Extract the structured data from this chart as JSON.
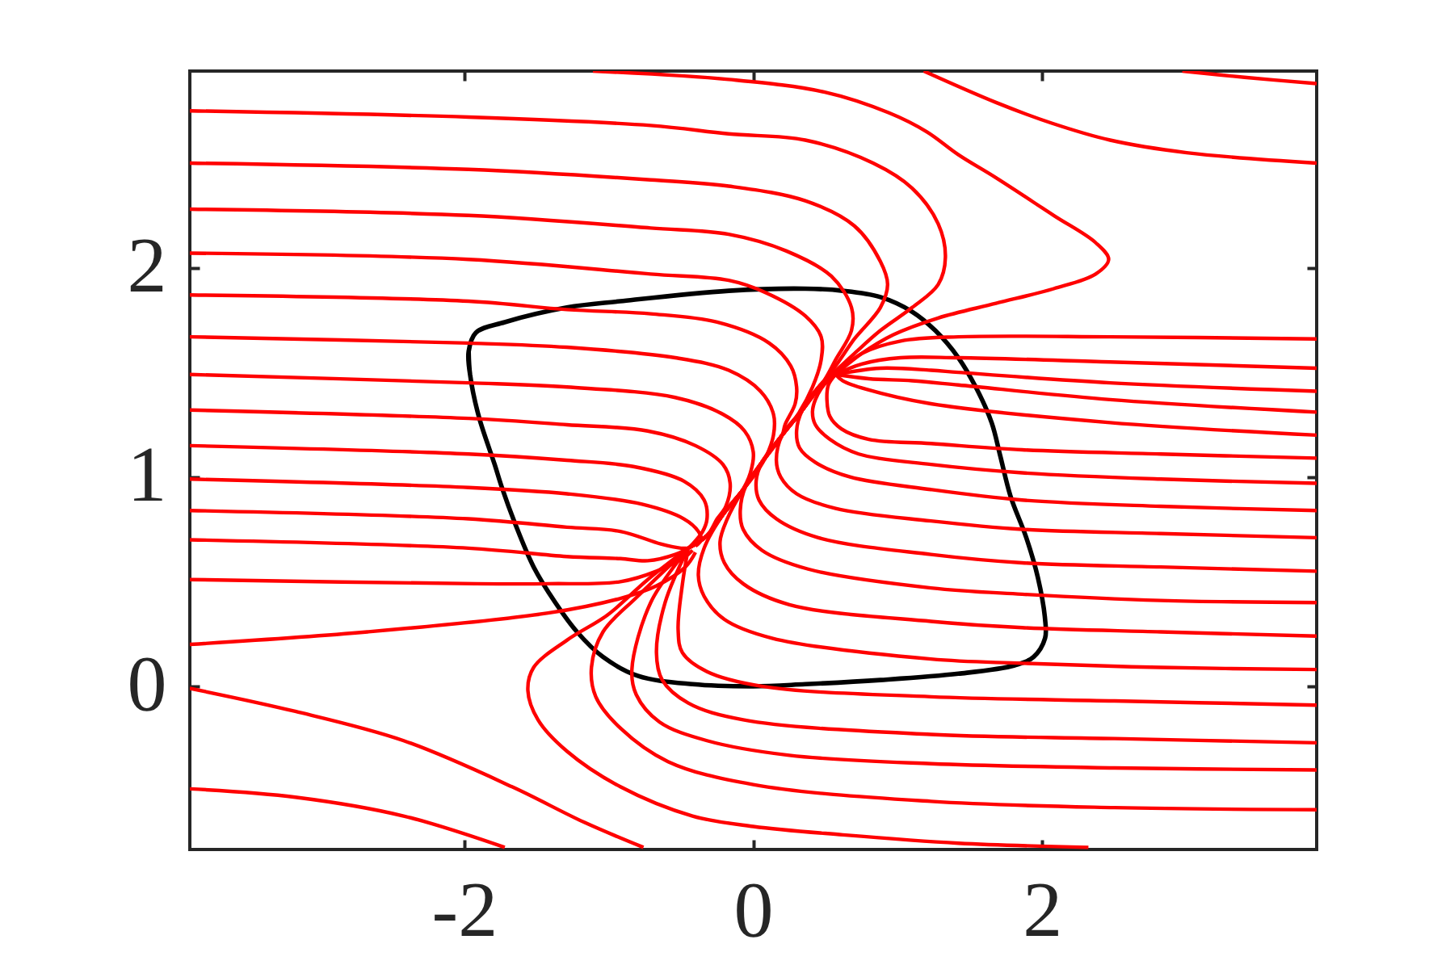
{
  "chart_data": {
    "type": "line",
    "xlim": [
      -3.9,
      3.9
    ],
    "ylim": [
      -0.78,
      2.94
    ],
    "xticks": [
      -2,
      0,
      2
    ],
    "yticks": [
      0,
      1,
      2
    ],
    "marker": "none",
    "line_style": "solid",
    "series": [
      {
        "color": "#000000",
        "x": [
          -1.97,
          -1.96,
          -1.9,
          -1.79,
          -1.74,
          -1.65,
          -1.52,
          -1.37,
          -1.22,
          -1.04,
          -0.8,
          -0.42,
          0,
          0.36,
          0.88,
          1.42,
          1.81,
          1.94,
          2.02,
          2.02,
          1.97,
          1.89,
          1.78,
          1.71,
          1.65,
          1.54,
          1.42,
          1.26,
          1.1,
          0.88,
          0.62,
          0.36,
          -0.17,
          -0.92,
          -1.29,
          -1.72,
          -1.92,
          -1.97,
          -1.96
        ],
        "values": [
          1.6,
          1.49,
          1.29,
          1.06,
          0.95,
          0.78,
          0.57,
          0.4,
          0.26,
          0.14,
          0.05,
          0.01,
          0,
          0.01,
          0.03,
          0.06,
          0.1,
          0.14,
          0.23,
          0.32,
          0.52,
          0.71,
          0.91,
          1.1,
          1.26,
          1.43,
          1.57,
          1.7,
          1.79,
          1.86,
          1.89,
          1.9,
          1.89,
          1.84,
          1.81,
          1.74,
          1.69,
          1.6,
          1.49
        ]
      },
      {
        "color": "#ff0000",
        "x": [
          -3.9,
          -1.97,
          -0.71,
          -0.17,
          0.36,
          0.83,
          1.1,
          1.28,
          1.33,
          1.28,
          1.1,
          0.88,
          0.7,
          0.59,
          0.48,
          0.34,
          0.2,
          0.06,
          -0.07,
          -0.2,
          -0.32,
          -0.45
        ],
        "values": [
          2.75,
          2.72,
          2.68,
          2.64,
          2.61,
          2.5,
          2.38,
          2.21,
          2.05,
          1.92,
          1.81,
          1.7,
          1.59,
          1.52,
          1.45,
          1.32,
          1.2,
          1.07,
          0.94,
          0.83,
          0.72,
          0.66
        ]
      },
      {
        "color": "#ff0000",
        "x": [
          -3.9,
          -1.97,
          -0.71,
          -0.17,
          0.36,
          0.7,
          0.88,
          0.93,
          0.88,
          0.7,
          0.59,
          0.48,
          0.34,
          0.2,
          0.06,
          -0.07,
          -0.2,
          -0.32,
          -0.45
        ],
        "values": [
          2.5,
          2.47,
          2.42,
          2.39,
          2.32,
          2.2,
          2.03,
          1.92,
          1.81,
          1.66,
          1.55,
          1.45,
          1.32,
          1.2,
          1.07,
          0.94,
          0.83,
          0.72,
          0.66
        ]
      },
      {
        "color": "#ff0000",
        "x": [
          -3.9,
          -1.97,
          -0.71,
          -0.17,
          0.23,
          0.54,
          0.68,
          0.68,
          0.57,
          0.49,
          0.34,
          0.2,
          0.06,
          -0.07,
          -0.2,
          -0.32,
          -0.45
        ],
        "values": [
          2.28,
          2.25,
          2.19,
          2.16,
          2.08,
          1.96,
          1.81,
          1.7,
          1.56,
          1.46,
          1.32,
          1.2,
          1.07,
          0.94,
          0.83,
          0.72,
          0.66
        ]
      },
      {
        "color": "#ff0000",
        "x": [
          -3.9,
          -1.97,
          -0.71,
          -0.17,
          0.09,
          0.36,
          0.47,
          0.47,
          0.41,
          0.31,
          0.2,
          0.06,
          -0.07,
          -0.2,
          -0.32,
          -0.45
        ],
        "values": [
          2.07,
          2.04,
          1.97,
          1.94,
          1.88,
          1.77,
          1.67,
          1.56,
          1.43,
          1.3,
          1.2,
          1.07,
          0.94,
          0.83,
          0.72,
          0.66
        ]
      },
      {
        "color": "#ff0000",
        "x": [
          -3.9,
          -1.97,
          -1.29,
          -0.71,
          -0.25,
          0.11,
          0.26,
          0.3,
          0.29,
          0.22,
          0.2,
          0.06,
          -0.07,
          -0.2,
          -0.32,
          -0.45
        ],
        "values": [
          1.87,
          1.84,
          1.8,
          1.78,
          1.74,
          1.64,
          1.53,
          1.43,
          1.35,
          1.25,
          1.2,
          1.07,
          0.94,
          0.83,
          0.72,
          0.66
        ]
      },
      {
        "color": "#ff0000",
        "x": [
          -3.9,
          -1.97,
          -1.29,
          -0.54,
          -0.17,
          0.05,
          0.14,
          0.14,
          0.09,
          0.02,
          -0.07,
          -0.2,
          -0.32,
          -0.45
        ],
        "values": [
          1.67,
          1.64,
          1.62,
          1.57,
          1.51,
          1.41,
          1.3,
          1.2,
          1.1,
          1.02,
          0.94,
          0.83,
          0.72,
          0.66
        ]
      },
      {
        "color": "#ff0000",
        "x": [
          -3.9,
          -1.97,
          -1.29,
          -0.54,
          -0.21,
          -0.06,
          0.0,
          -0.02,
          -0.09,
          -0.2,
          -0.32,
          -0.45
        ],
        "values": [
          1.49,
          1.45,
          1.43,
          1.38,
          1.3,
          1.22,
          1.12,
          1.02,
          0.92,
          0.83,
          0.72,
          0.66
        ]
      },
      {
        "color": "#ff0000",
        "x": [
          -3.9,
          -1.97,
          -1.29,
          -0.73,
          -0.4,
          -0.21,
          -0.16,
          -0.19,
          -0.25,
          -0.32,
          -0.45
        ],
        "values": [
          1.32,
          1.28,
          1.25,
          1.22,
          1.15,
          1.06,
          0.97,
          0.86,
          0.8,
          0.72,
          0.66
        ]
      },
      {
        "color": "#ff0000",
        "x": [
          -3.9,
          -1.97,
          -1.29,
          -0.83,
          -0.48,
          -0.34,
          -0.32,
          -0.35,
          -0.42,
          -0.45
        ],
        "values": [
          1.15,
          1.11,
          1.08,
          1.05,
          0.98,
          0.89,
          0.8,
          0.74,
          0.68,
          0.66
        ]
      },
      {
        "color": "#ff0000",
        "x": [
          -3.9,
          -1.97,
          -1.29,
          -0.77,
          -0.48,
          -0.38,
          -0.36,
          -0.4
        ],
        "values": [
          0.99,
          0.95,
          0.92,
          0.87,
          0.8,
          0.74,
          0.7,
          0.67
        ]
      },
      {
        "color": "#ff0000",
        "x": [
          -3.9,
          -1.97,
          -1.29,
          -0.92,
          -0.64,
          -0.5,
          -0.44
        ],
        "values": [
          0.84,
          0.8,
          0.76,
          0.74,
          0.68,
          0.66,
          0.66
        ]
      },
      {
        "color": "#ff0000",
        "x": [
          -3.9,
          -1.97,
          -1.29,
          -0.92,
          -0.73,
          -0.54,
          -0.45
        ],
        "values": [
          0.7,
          0.66,
          0.62,
          0.61,
          0.6,
          0.63,
          0.66
        ]
      },
      {
        "color": "#ff0000",
        "x": [
          -3.9,
          -1.92,
          -1.42,
          -0.92,
          -0.67,
          -0.47,
          -0.42
        ],
        "values": [
          0.51,
          0.49,
          0.49,
          0.5,
          0.55,
          0.62,
          0.65
        ]
      },
      {
        "color": "#ff0000",
        "x": [
          -3.9,
          -2.67,
          -1.42,
          -0.92,
          -0.67,
          -0.47,
          -0.4
        ],
        "values": [
          0.2,
          0.26,
          0.35,
          0.42,
          0.48,
          0.57,
          0.64
        ]
      },
      {
        "color": "#ff0000",
        "x": [
          -3.9,
          -3.17,
          -2.42,
          -1.67,
          -1.17,
          -0.76
        ],
        "values": [
          -0.01,
          -0.12,
          -0.26,
          -0.48,
          -0.65,
          -0.77
        ]
      },
      {
        "color": "#ff0000",
        "x": [
          -3.9,
          -3.17,
          -2.42,
          -1.72
        ],
        "values": [
          -0.49,
          -0.53,
          -0.62,
          -0.77
        ]
      },
      {
        "color": "#ff0000",
        "x": [
          -1.11,
          -0.17,
          0.49,
          0.94,
          1.2,
          1.42,
          1.68,
          2.08,
          2.37,
          2.46,
          2.37,
          2.08,
          1.68,
          1.28,
          0.97,
          0.75,
          0.62,
          0.57
        ],
        "values": [
          2.94,
          2.9,
          2.84,
          2.74,
          2.65,
          2.54,
          2.43,
          2.25,
          2.12,
          2.04,
          1.97,
          1.9,
          1.83,
          1.76,
          1.68,
          1.59,
          1.52,
          1.49
        ]
      },
      {
        "color": "#ff0000",
        "x": [
          1.18,
          1.68,
          2.07,
          2.47,
          3.0,
          3.9
        ],
        "values": [
          2.94,
          2.79,
          2.69,
          2.61,
          2.55,
          2.5
        ]
      },
      {
        "color": "#ff0000",
        "x": [
          2.97,
          3.4,
          3.9
        ],
        "values": [
          2.94,
          2.91,
          2.88
        ]
      },
      {
        "color": "#ff0000",
        "x": [
          0.57,
          0.75,
          1.02,
          1.42,
          2.47,
          3.9
        ],
        "values": [
          1.49,
          1.59,
          1.65,
          1.67,
          1.67,
          1.66
        ]
      },
      {
        "color": "#ff0000",
        "x": [
          0.57,
          0.75,
          1.02,
          1.42,
          2.47,
          3.9
        ],
        "values": [
          1.49,
          1.54,
          1.57,
          1.57,
          1.55,
          1.52
        ]
      },
      {
        "color": "#ff0000",
        "x": [
          0.57,
          0.88,
          1.23,
          1.42,
          2.47,
          3.9
        ],
        "values": [
          1.49,
          1.52,
          1.51,
          1.5,
          1.45,
          1.41
        ]
      },
      {
        "color": "#ff0000",
        "x": [
          0.57,
          0.8,
          1.1,
          1.42,
          2.47,
          3.9
        ],
        "values": [
          1.49,
          1.47,
          1.46,
          1.44,
          1.37,
          1.31
        ]
      },
      {
        "color": "#ff0000",
        "x": [
          0.57,
          0.62,
          0.78,
          1.23,
          2.47,
          3.9
        ],
        "values": [
          1.49,
          1.46,
          1.42,
          1.35,
          1.26,
          1.2
        ]
      },
      {
        "color": "#ff0000",
        "x": [
          0.57,
          0.52,
          0.51,
          0.53,
          0.61,
          0.8,
          1.23,
          1.86,
          2.82,
          3.9
        ],
        "values": [
          1.49,
          1.44,
          1.37,
          1.29,
          1.23,
          1.18,
          1.16,
          1.13,
          1.11,
          1.09
        ]
      },
      {
        "color": "#ff0000",
        "x": [
          0.57,
          0.49,
          0.43,
          0.41,
          0.43,
          0.53,
          0.73,
          1.23,
          1.86,
          2.82,
          3.9
        ],
        "values": [
          1.49,
          1.44,
          1.37,
          1.31,
          1.25,
          1.18,
          1.11,
          1.06,
          1.02,
          0.99,
          0.97
        ]
      },
      {
        "color": "#ff0000",
        "x": [
          0.57,
          0.48,
          0.34,
          0.3,
          0.32,
          0.43,
          0.67,
          1.23,
          1.86,
          2.82,
          3.9
        ],
        "values": [
          1.49,
          1.45,
          1.32,
          1.22,
          1.14,
          1.07,
          1.0,
          0.94,
          0.89,
          0.86,
          0.84
        ]
      },
      {
        "color": "#ff0000",
        "x": [
          0.57,
          0.48,
          0.34,
          0.2,
          0.16,
          0.19,
          0.3,
          0.57,
          1.23,
          1.86,
          2.82,
          3.9
        ],
        "values": [
          1.49,
          1.45,
          1.32,
          1.2,
          1.08,
          1.0,
          0.92,
          0.85,
          0.79,
          0.75,
          0.73,
          0.71
        ]
      },
      {
        "color": "#ff0000",
        "x": [
          0.57,
          0.48,
          0.34,
          0.2,
          0.06,
          0.02,
          0.04,
          0.16,
          0.45,
          1.23,
          1.86,
          2.82,
          3.9
        ],
        "values": [
          1.49,
          1.45,
          1.32,
          1.2,
          1.07,
          0.98,
          0.89,
          0.8,
          0.71,
          0.63,
          0.59,
          0.57,
          0.55
        ]
      },
      {
        "color": "#ff0000",
        "x": [
          0.57,
          0.48,
          0.34,
          0.2,
          0.06,
          -0.05,
          -0.09,
          -0.07,
          0.06,
          0.38,
          1.23,
          1.86,
          2.82,
          3.9
        ],
        "values": [
          1.49,
          1.45,
          1.32,
          1.2,
          1.07,
          0.96,
          0.84,
          0.75,
          0.65,
          0.56,
          0.47,
          0.44,
          0.41,
          0.4
        ]
      },
      {
        "color": "#ff0000",
        "x": [
          0.57,
          0.48,
          0.34,
          0.2,
          0.06,
          -0.07,
          -0.18,
          -0.23,
          -0.2,
          -0.07,
          0.25,
          1.23,
          1.86,
          2.82,
          3.9
        ],
        "values": [
          1.49,
          1.45,
          1.32,
          1.2,
          1.07,
          0.94,
          0.8,
          0.69,
          0.59,
          0.49,
          0.39,
          0.31,
          0.28,
          0.26,
          0.24
        ]
      },
      {
        "color": "#ff0000",
        "x": [
          0.57,
          0.48,
          0.34,
          0.2,
          0.06,
          -0.07,
          -0.2,
          -0.34,
          -0.38,
          -0.34,
          -0.2,
          0.13,
          1.23,
          1.86,
          2.82,
          3.9
        ],
        "values": [
          1.49,
          1.45,
          1.32,
          1.2,
          1.07,
          0.94,
          0.83,
          0.66,
          0.53,
          0.43,
          0.32,
          0.23,
          0.13,
          0.11,
          0.09,
          0.08
        ]
      },
      {
        "color": "#ff0000",
        "x": [
          -0.45,
          -0.49,
          -0.52,
          -0.49,
          -0.32,
          0.06,
          1.23,
          2.5,
          3.9
        ],
        "values": [
          0.66,
          0.49,
          0.27,
          0.16,
          0.07,
          0.0,
          -0.05,
          -0.07,
          -0.09
        ]
      },
      {
        "color": "#ff0000",
        "x": [
          -0.45,
          -0.61,
          -0.67,
          -0.63,
          -0.45,
          -0.07,
          1.23,
          2.5,
          3.9
        ],
        "values": [
          0.66,
          0.4,
          0.16,
          0.03,
          -0.08,
          -0.16,
          -0.23,
          -0.25,
          -0.27
        ]
      },
      {
        "color": "#ff0000",
        "x": [
          -0.45,
          -0.71,
          -0.84,
          -0.81,
          -0.65,
          -0.32,
          0.25,
          1.23,
          2.5,
          3.9
        ],
        "values": [
          0.66,
          0.4,
          0.08,
          -0.04,
          -0.17,
          -0.26,
          -0.33,
          -0.37,
          -0.39,
          -0.4
        ]
      },
      {
        "color": "#ff0000",
        "x": [
          -0.45,
          -0.8,
          -1.04,
          -1.12,
          -1.09,
          -0.92,
          -0.59,
          0.0,
          1.23,
          2.5,
          3.9
        ],
        "values": [
          0.66,
          0.43,
          0.26,
          0.09,
          -0.05,
          -0.2,
          -0.36,
          -0.47,
          -0.55,
          -0.58,
          -0.59
        ]
      },
      {
        "color": "#ff0000",
        "x": [
          -0.45,
          -0.73,
          -1.01,
          -1.29,
          -1.52,
          -1.56,
          -1.49,
          -1.29,
          -0.92,
          -0.42,
          0.0,
          0.62,
          1.42,
          2.32
        ],
        "values": [
          0.66,
          0.51,
          0.34,
          0.22,
          0.09,
          -0.02,
          -0.16,
          -0.31,
          -0.48,
          -0.62,
          -0.67,
          -0.71,
          -0.75,
          -0.77
        ]
      }
    ]
  }
}
